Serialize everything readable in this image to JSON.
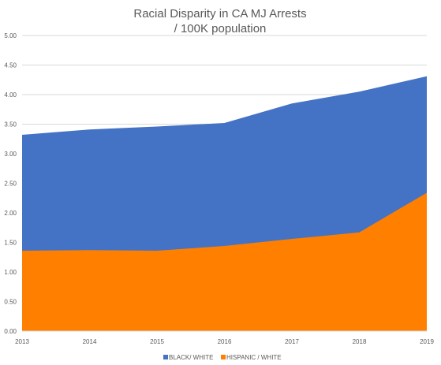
{
  "chart_data": {
    "type": "area",
    "title_lines": [
      "Racial Disparity in CA MJ Arrests",
      "/ 100K population"
    ],
    "xlabel": "",
    "ylabel": "",
    "x": [
      "2013",
      "2014",
      "2015",
      "2016",
      "2017",
      "2018",
      "2019"
    ],
    "ylim": [
      0,
      5
    ],
    "yticks": [
      "0.00",
      "0.50",
      "1.00",
      "1.50",
      "2.00",
      "2.50",
      "3.00",
      "3.50",
      "4.00",
      "4.50",
      "5.00"
    ],
    "grid": true,
    "legend_position": "bottom",
    "series": [
      {
        "name": "BLACK/ WHITE",
        "color": "#4472c4",
        "values": [
          3.32,
          3.41,
          3.46,
          3.52,
          3.85,
          4.05,
          4.31
        ]
      },
      {
        "name": "HISPANIC / WHITE",
        "color": "#ff7f00",
        "values": [
          1.36,
          1.37,
          1.36,
          1.44,
          1.56,
          1.67,
          2.34
        ]
      }
    ]
  }
}
